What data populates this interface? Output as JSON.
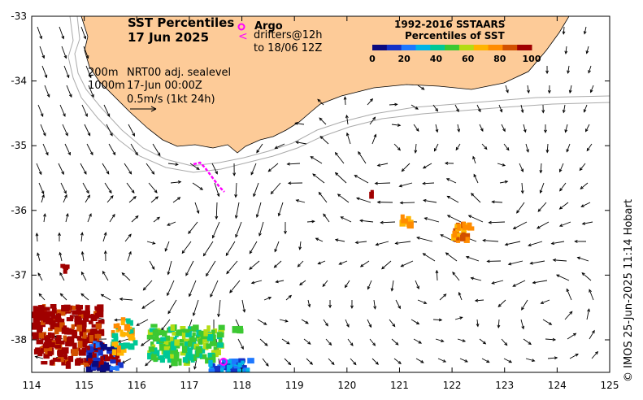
{
  "map": {
    "title_line1": "SST Percentiles",
    "title_line2": "17 Jun 2025",
    "legend_argo_symbol": "o",
    "legend_argo": "Argo",
    "legend_drifter_symbol": "<",
    "legend_drifters": "drifters@12h",
    "legend_drifters_to": "to 18/06 12Z",
    "contour_200m": "200m",
    "contour_1000m": "1000m",
    "nrt_label": "NRT00 adj. sealevel",
    "nrt_time": "17-Jun 00:00Z",
    "vector_scale_label": "0.5m/s (1kt 24h)",
    "credit": "© IMOS 25-Jun-2025 11:14 Hobart",
    "colorbar": {
      "title_line1": "1992-2016 SSTAARS",
      "title_line2": "Percentiles of SST",
      "ticks": [
        "0",
        "20",
        "40",
        "60",
        "80",
        "100"
      ],
      "colors": [
        "#0a0a80",
        "#1432c8",
        "#1e78ff",
        "#00b4e6",
        "#00c896",
        "#3cc832",
        "#b4dc14",
        "#ffb400",
        "#ff8c00",
        "#d25000",
        "#a00000"
      ]
    },
    "lat_ticks": [
      "-33",
      "-34",
      "-35",
      "-36",
      "-37",
      "-38"
    ],
    "lon_ticks": [
      "114",
      "115",
      "116",
      "117",
      "118",
      "119",
      "120",
      "121",
      "122",
      "123",
      "124",
      "125"
    ],
    "colors": {
      "land": "#fdcb98",
      "argo": "#ff00ff",
      "drifter": "#ff00ff",
      "bathy": "#aaaaaa"
    }
  }
}
